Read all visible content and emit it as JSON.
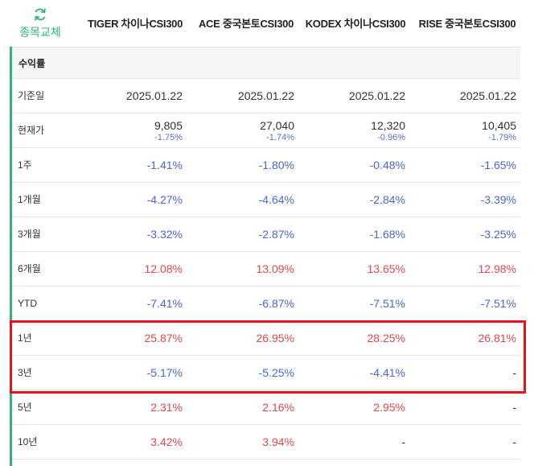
{
  "header": {
    "swap_label": "종목교체",
    "columns": [
      "TIGER 차이나CSI300",
      "ACE 중국본토CSI300",
      "KODEX 차이나CSI300",
      "RISE 중국본토CSI300"
    ]
  },
  "section": {
    "title": "수익률"
  },
  "rows": {
    "base_date": {
      "label": "기준일",
      "values": [
        "2025.01.22",
        "2025.01.22",
        "2025.01.22",
        "2025.01.22"
      ]
    },
    "price": {
      "label": "현재가",
      "values": [
        "9,805",
        "27,040",
        "12,320",
        "10,405"
      ],
      "changes": [
        "-1.75%",
        "-1.74%",
        "-0.96%",
        "-1.79%"
      ]
    },
    "w1": {
      "label": "1주",
      "values": [
        "-1.41%",
        "-1.80%",
        "-0.48%",
        "-1.65%"
      ]
    },
    "m1": {
      "label": "1개월",
      "values": [
        "-4.27%",
        "-4.64%",
        "-2.84%",
        "-3.39%"
      ]
    },
    "m3": {
      "label": "3개월",
      "values": [
        "-3.32%",
        "-2.87%",
        "-1.68%",
        "-3.25%"
      ]
    },
    "m6": {
      "label": "6개월",
      "values": [
        "12.08%",
        "13.09%",
        "13.65%",
        "12.98%"
      ]
    },
    "ytd": {
      "label": "YTD",
      "values": [
        "-7.41%",
        "-6.87%",
        "-7.51%",
        "-7.51%"
      ]
    },
    "y1": {
      "label": "1년",
      "values": [
        "25.87%",
        "26.95%",
        "28.25%",
        "26.81%"
      ]
    },
    "y3": {
      "label": "3년",
      "values": [
        "-5.17%",
        "-5.25%",
        "-4.41%",
        "-"
      ]
    },
    "y5": {
      "label": "5년",
      "values": [
        "2.31%",
        "2.16%",
        "2.95%",
        "-"
      ]
    },
    "y10": {
      "label": "10년",
      "values": [
        "3.42%",
        "3.94%",
        "-",
        "-"
      ]
    }
  },
  "colors": {
    "accent": "#2eb37a",
    "negative": "#4a66d9",
    "positive": "#e0484f",
    "highlight": "#e6121b"
  }
}
